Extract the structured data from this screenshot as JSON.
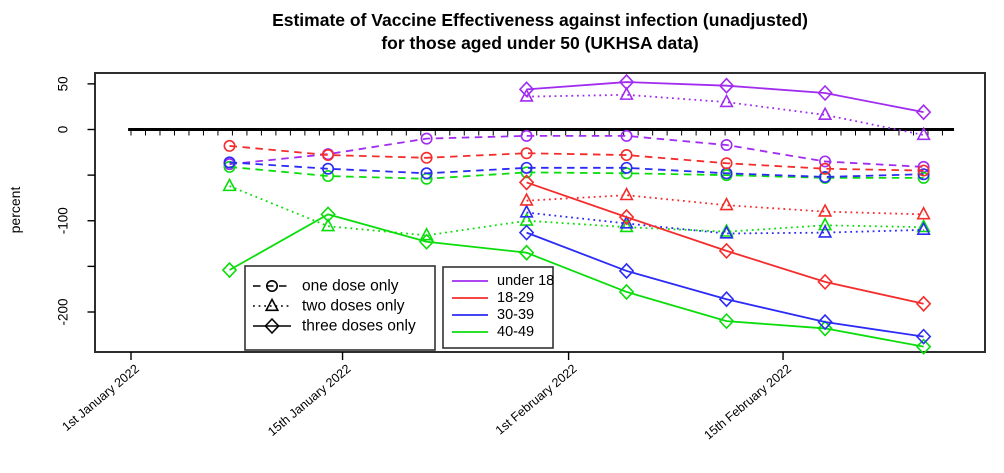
{
  "title": {
    "line1": "Estimate of Vaccine Effectiveness against infection (unadjusted)",
    "line2": "for those aged under 50 (UKHSA data)"
  },
  "y_axis": {
    "label": "percent",
    "ticks": [
      {
        "value": 50,
        "label": "50"
      },
      {
        "value": 0,
        "label": "0"
      },
      {
        "value": -50,
        "label": ""
      },
      {
        "value": -100,
        "label": "-100"
      },
      {
        "value": -150,
        "label": ""
      },
      {
        "value": -200,
        "label": "-200"
      }
    ]
  },
  "x_axis": {
    "ticks": [
      {
        "day": 0,
        "label": "1st January 2022"
      },
      {
        "day": 14.6,
        "label": "15th January 2022"
      },
      {
        "day": 30.2,
        "label": "1st February 2022"
      },
      {
        "day": 45.0,
        "label": "15th February 2022"
      }
    ]
  },
  "legends": {
    "dose_legend": {
      "entries": [
        {
          "label": "one dose only",
          "linestyle": "dashed",
          "marker": "circle"
        },
        {
          "label": "two doses only",
          "linestyle": "dotted",
          "marker": "triangle"
        },
        {
          "label": "three doses only",
          "linestyle": "solid",
          "marker": "diamond"
        }
      ]
    },
    "age_legend": {
      "entries": [
        {
          "label": "under 18",
          "color": "#A12CF0"
        },
        {
          "label": "18-29",
          "color": "#F52C2C"
        },
        {
          "label": "30-39",
          "color": "#2B2BF5"
        },
        {
          "label": "40-49",
          "color": "#0ADD0A"
        }
      ]
    }
  },
  "chart_data": {
    "type": "line",
    "title": "Estimate of Vaccine Effectiveness against infection (unadjusted) for those aged under 50 (UKHSA data)",
    "xlabel": "",
    "ylabel": "percent",
    "x_days_since_1jan2022": [
      6.8,
      13.6,
      20.4,
      27.3,
      34.2,
      41.1,
      47.9,
      54.7
    ],
    "ylim_shown": [
      -244,
      62
    ],
    "zero_reference_line": true,
    "grid": false,
    "colors": {
      "under 18": "#A12CF0",
      "18-29": "#F52C2C",
      "30-39": "#2B2BF5",
      "40-49": "#0ADD0A"
    },
    "series": [
      {
        "name": "under 18 one dose only",
        "age_group": "under 18",
        "dose": "one dose only",
        "color": "#A12CF0",
        "linestyle": "dashed",
        "marker": "circle",
        "start_index": 0,
        "values": [
          -38,
          -27,
          -10,
          -7,
          -7,
          -17,
          -35,
          -41
        ]
      },
      {
        "name": "under 18 two doses only",
        "age_group": "under 18",
        "dose": "two doses only",
        "color": "#A12CF0",
        "linestyle": "dotted",
        "marker": "triangle",
        "start_index": 3,
        "values": [
          36,
          38,
          30,
          16,
          -6
        ]
      },
      {
        "name": "under 18 three doses only",
        "age_group": "under 18",
        "dose": "three doses only",
        "color": "#A12CF0",
        "linestyle": "solid",
        "marker": "diamond",
        "start_index": 3,
        "values": [
          44,
          52,
          48,
          40,
          19
        ]
      },
      {
        "name": "18-29 one dose only",
        "age_group": "18-29",
        "dose": "one dose only",
        "color": "#F52C2C",
        "linestyle": "dashed",
        "marker": "circle",
        "start_index": 0,
        "values": [
          -18,
          -28,
          -31,
          -26,
          -28,
          -37,
          -43,
          -45
        ]
      },
      {
        "name": "18-29 two doses only",
        "age_group": "18-29",
        "dose": "two doses only",
        "color": "#F52C2C",
        "linestyle": "dotted",
        "marker": "triangle",
        "start_index": 3,
        "values": [
          -78,
          -72,
          -83,
          -90,
          -93
        ]
      },
      {
        "name": "18-29 three doses only",
        "age_group": "18-29",
        "dose": "three doses only",
        "color": "#F52C2C",
        "linestyle": "solid",
        "marker": "diamond",
        "start_index": 3,
        "values": [
          -58,
          -96,
          -133,
          -167,
          -191
        ]
      },
      {
        "name": "30-39 one dose only",
        "age_group": "30-39",
        "dose": "one dose only",
        "color": "#2B2BF5",
        "linestyle": "dashed",
        "marker": "circle",
        "start_index": 0,
        "values": [
          -36,
          -43,
          -48,
          -42,
          -42,
          -48,
          -52,
          -49
        ]
      },
      {
        "name": "30-39 two doses only",
        "age_group": "30-39",
        "dose": "two doses only",
        "color": "#2B2BF5",
        "linestyle": "dotted",
        "marker": "triangle",
        "start_index": 3,
        "values": [
          -91,
          -103,
          -114,
          -113,
          -110
        ]
      },
      {
        "name": "30-39 three doses only",
        "age_group": "30-39",
        "dose": "three doses only",
        "color": "#2B2BF5",
        "linestyle": "solid",
        "marker": "diamond",
        "start_index": 3,
        "values": [
          -113,
          -155,
          -186,
          -211,
          -227
        ]
      },
      {
        "name": "40-49 one dose only",
        "age_group": "40-49",
        "dose": "one dose only",
        "color": "#0ADD0A",
        "linestyle": "dashed",
        "marker": "circle",
        "start_index": 0,
        "values": [
          -41,
          -51,
          -54,
          -47,
          -48,
          -50,
          -53,
          -53
        ]
      },
      {
        "name": "40-49 two doses only",
        "age_group": "40-49",
        "dose": "two doses only",
        "color": "#0ADD0A",
        "linestyle": "dotted",
        "marker": "triangle",
        "start_index": 0,
        "values": [
          -62,
          -106,
          -116,
          -100,
          -107,
          -112,
          -105,
          -107
        ]
      },
      {
        "name": "40-49 three doses only",
        "age_group": "40-49",
        "dose": "three doses only",
        "color": "#0ADD0A",
        "linestyle": "solid",
        "marker": "diamond",
        "start_index": 0,
        "values": [
          -154,
          -93,
          -123,
          -135,
          -178,
          -210,
          -218,
          -238
        ]
      }
    ]
  }
}
